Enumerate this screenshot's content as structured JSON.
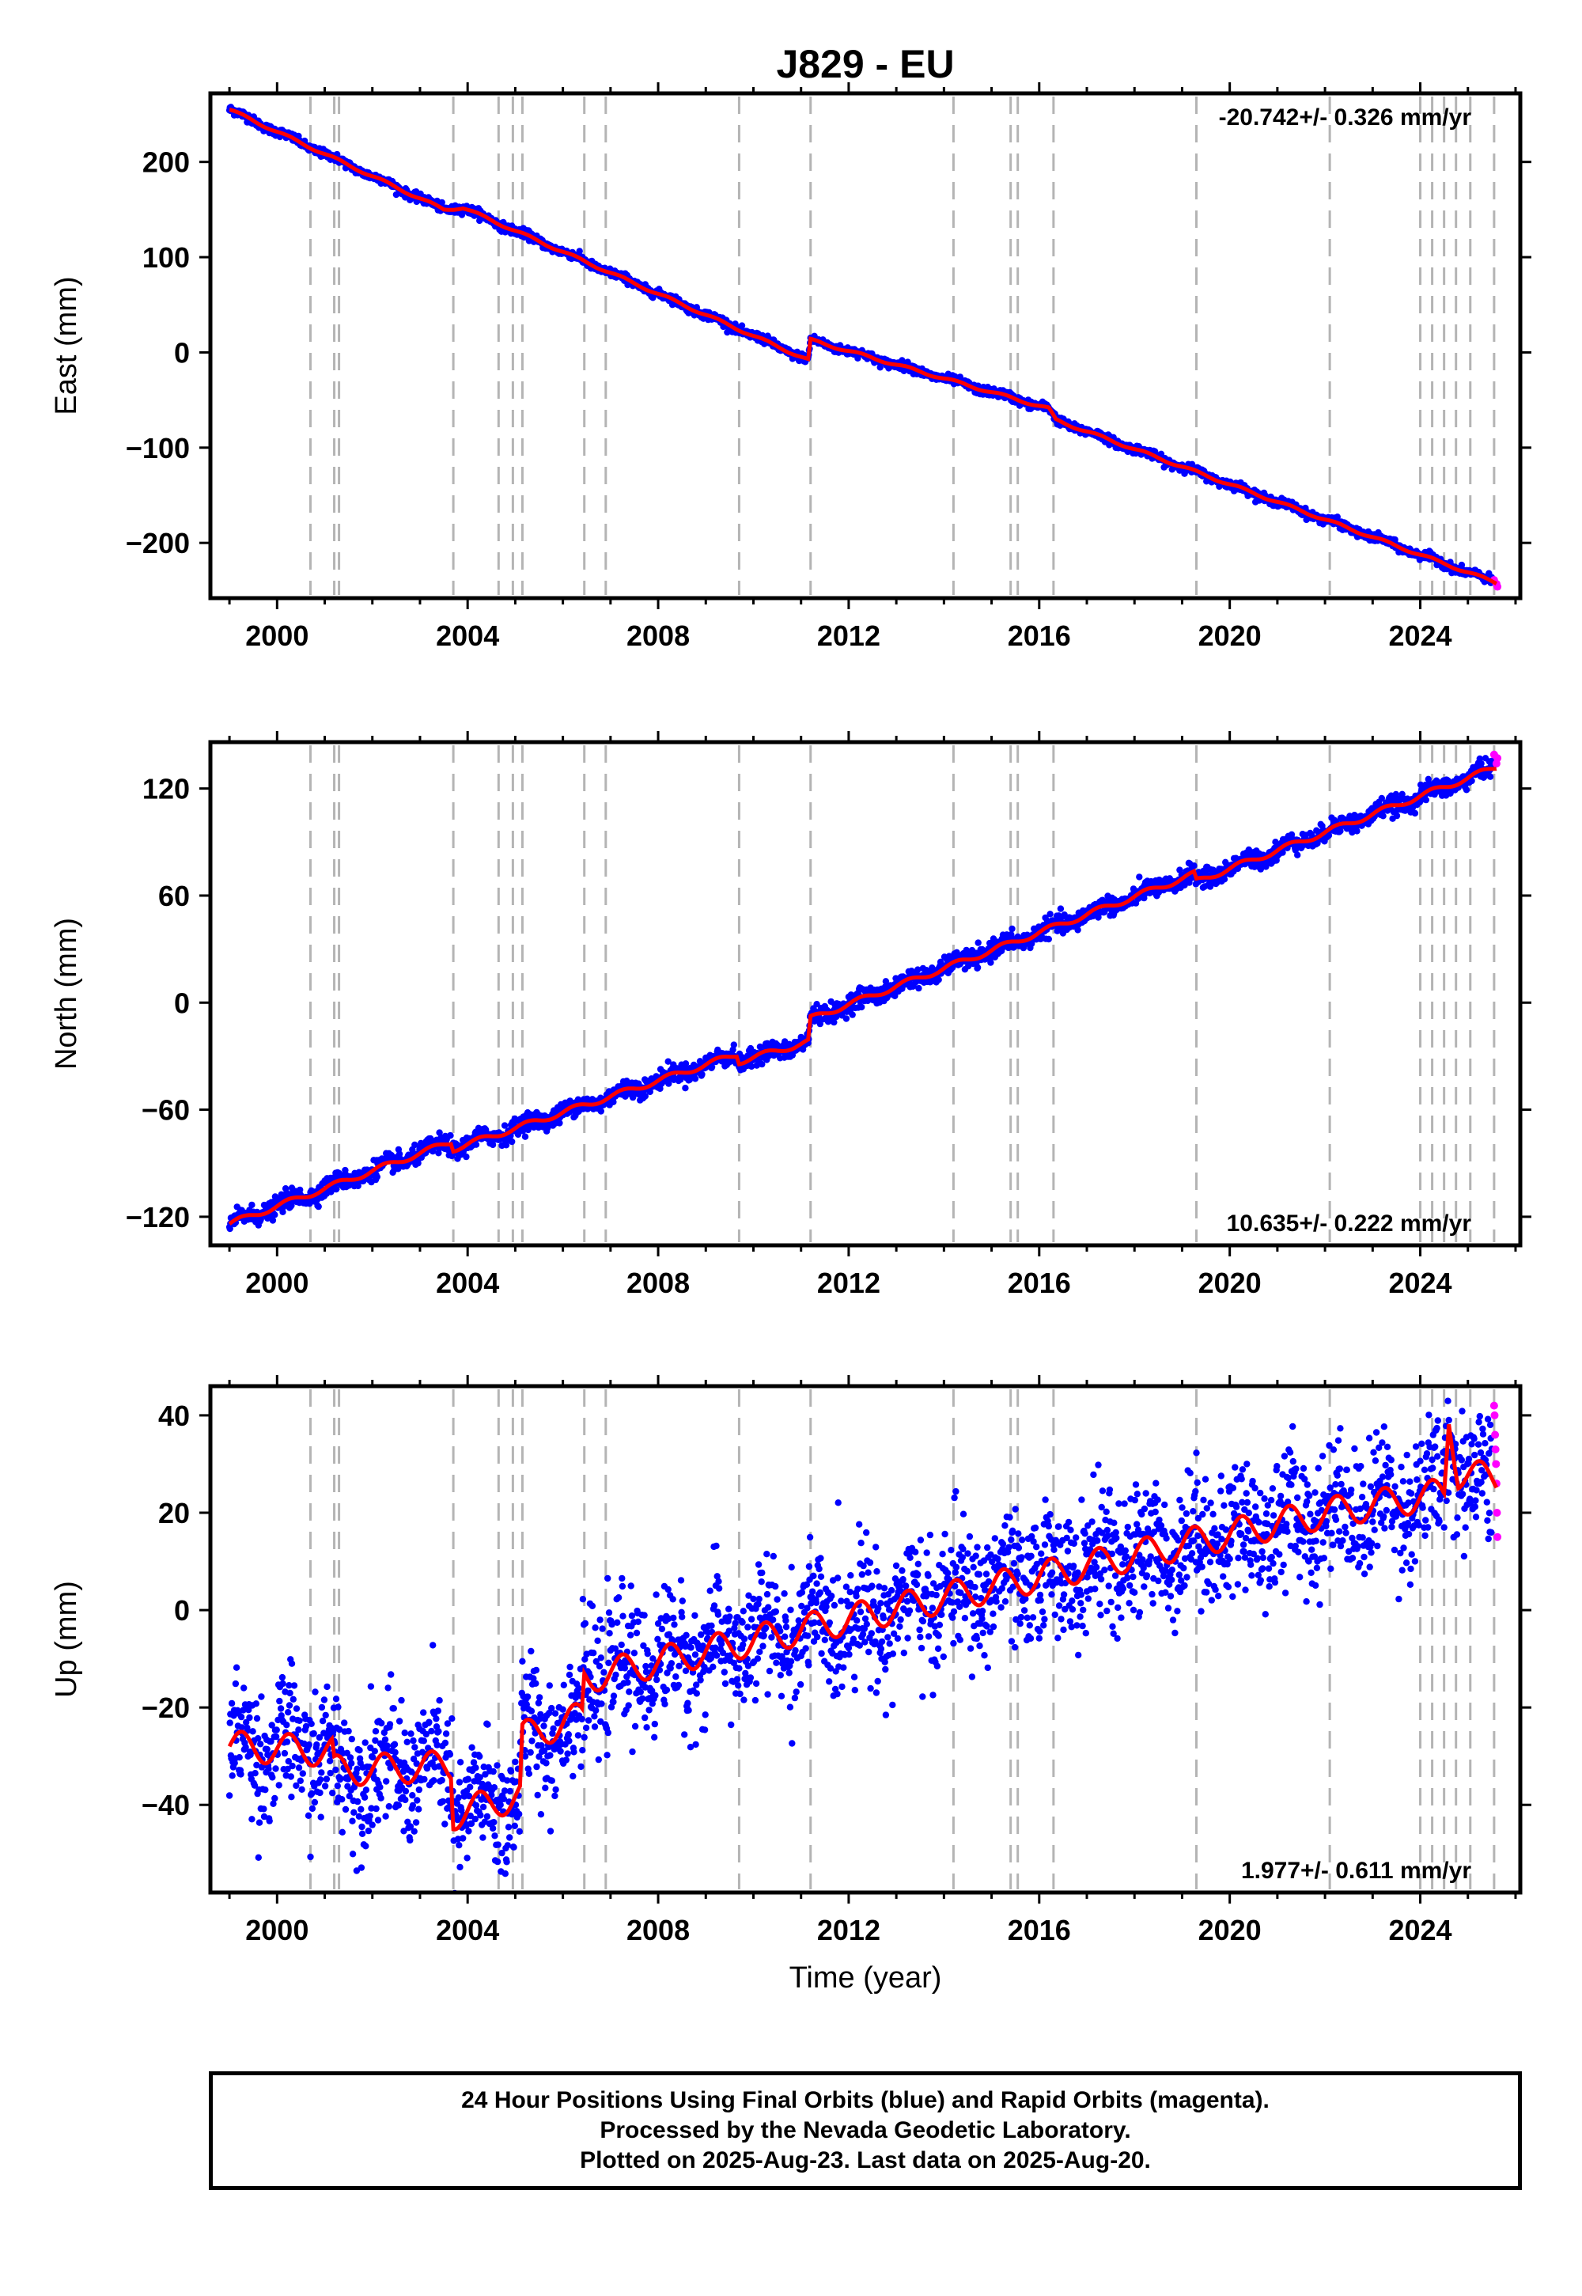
{
  "figure": {
    "title": "J829 - EU",
    "footer": [
      "24 Hour Positions Using Final Orbits (blue) and Rapid Orbits (magenta).",
      "Processed by the Nevada Geodetic Laboratory.",
      "Plotted on 2025-Aug-23. Last data on 2025-Aug-20."
    ],
    "colors": {
      "final_orbits": "#0000ff",
      "rapid_orbits": "#ff00ff",
      "model_fit": "#ff0000",
      "event_lines": "#b4b4b4"
    }
  },
  "chart_data": [
    {
      "type": "scatter",
      "component": "east",
      "title": "J829 - EU",
      "xlabel": "",
      "ylabel": "East (mm)",
      "xlim": [
        1998.6,
        2026.1
      ],
      "ylim": [
        -258,
        272
      ],
      "xticks": [
        2000,
        2004,
        2008,
        2012,
        2016,
        2020,
        2024
      ],
      "yticks": [
        -200,
        -100,
        0,
        100,
        200
      ],
      "annotation": "-20.742+/- 0.326 mm/yr",
      "grid": false,
      "event_lines": [
        2000.7,
        2001.2,
        2001.3,
        2003.7,
        2004.65,
        2004.95,
        2005.15,
        2006.45,
        2006.9,
        2009.7,
        2011.2,
        2014.2,
        2015.4,
        2015.55,
        2016.3,
        2019.3,
        2022.1,
        2024.0,
        2024.25,
        2024.5,
        2024.75,
        2025.05,
        2025.55
      ],
      "fit_breakpoints": [
        [
          1999.0,
          255
        ],
        [
          2003.5,
          150
        ],
        [
          2003.9,
          152
        ],
        [
          2011.15,
          -8
        ],
        [
          2011.2,
          13
        ],
        [
          2016.2,
          -59
        ],
        [
          2016.35,
          -71
        ],
        [
          2025.6,
          -242
        ]
      ],
      "noise_mm": 2.2,
      "seasonal_mm": 1.5,
      "rapid_points": [
        [
          2025.55,
          -239
        ],
        [
          2025.6,
          -243
        ],
        [
          2025.62,
          -246
        ]
      ]
    },
    {
      "type": "scatter",
      "component": "north",
      "title": "",
      "xlabel": "",
      "ylabel": "North (mm)",
      "xlim": [
        1998.6,
        2026.1
      ],
      "ylim": [
        -136,
        146
      ],
      "xticks": [
        2000,
        2004,
        2008,
        2012,
        2016,
        2020,
        2024
      ],
      "yticks": [
        -120,
        -60,
        0,
        60,
        120
      ],
      "annotation": "10.635+/- 0.222 mm/yr",
      "grid": false,
      "event_lines": [
        2000.7,
        2001.2,
        2001.3,
        2003.7,
        2004.65,
        2004.95,
        2005.15,
        2006.45,
        2006.9,
        2009.7,
        2011.2,
        2014.2,
        2015.4,
        2015.55,
        2016.3,
        2019.3,
        2022.1,
        2024.0,
        2024.25,
        2024.5,
        2024.75,
        2025.05,
        2025.55
      ],
      "fit_breakpoints": [
        [
          1999.0,
          -124
        ],
        [
          2003.65,
          -78
        ],
        [
          2003.7,
          -82
        ],
        [
          2009.65,
          -29
        ],
        [
          2009.7,
          -33
        ],
        [
          2011.15,
          -22
        ],
        [
          2011.2,
          -9
        ],
        [
          2019.25,
          72
        ],
        [
          2019.3,
          68
        ],
        [
          2025.6,
          132
        ]
      ],
      "noise_mm": 2.5,
      "seasonal_mm": 1.8,
      "rapid_points": [
        [
          2025.55,
          139
        ],
        [
          2025.6,
          134
        ],
        [
          2025.62,
          137
        ]
      ]
    },
    {
      "type": "scatter",
      "component": "up",
      "title": "",
      "xlabel": "Time (year)",
      "ylabel": "Up (mm)",
      "xlim": [
        1998.6,
        2026.1
      ],
      "ylim": [
        -58,
        46
      ],
      "xticks": [
        2000,
        2004,
        2008,
        2012,
        2016,
        2020,
        2024
      ],
      "yticks": [
        -40,
        -20,
        0,
        20,
        40
      ],
      "annotation": "1.977+/- 0.611 mm/yr",
      "grid": false,
      "event_lines": [
        2000.7,
        2001.2,
        2001.3,
        2003.7,
        2004.65,
        2004.95,
        2005.15,
        2006.45,
        2006.9,
        2009.7,
        2011.2,
        2014.2,
        2015.4,
        2015.55,
        2016.3,
        2019.3,
        2022.1,
        2024.0,
        2024.25,
        2024.5,
        2024.75,
        2025.05,
        2025.55
      ],
      "fit_breakpoints": [
        [
          1999.0,
          -28
        ],
        [
          2001.15,
          -29
        ],
        [
          2001.2,
          -33
        ],
        [
          2003.65,
          -32
        ],
        [
          2003.7,
          -42
        ],
        [
          2005.1,
          -38
        ],
        [
          2005.15,
          -26
        ],
        [
          2006.4,
          -22
        ],
        [
          2006.45,
          -14
        ],
        [
          2019.25,
          14
        ],
        [
          2022.05,
          20
        ],
        [
          2024.5,
          24
        ],
        [
          2024.6,
          40
        ],
        [
          2024.8,
          28
        ],
        [
          2025.6,
          27
        ]
      ],
      "noise_mm": 6.5,
      "seasonal_mm": 3.5,
      "rapid_points": [
        [
          2025.55,
          42
        ],
        [
          2025.56,
          40
        ],
        [
          2025.57,
          36
        ],
        [
          2025.58,
          33
        ],
        [
          2025.59,
          30
        ],
        [
          2025.6,
          26
        ],
        [
          2025.61,
          20
        ],
        [
          2025.62,
          15
        ]
      ]
    }
  ]
}
